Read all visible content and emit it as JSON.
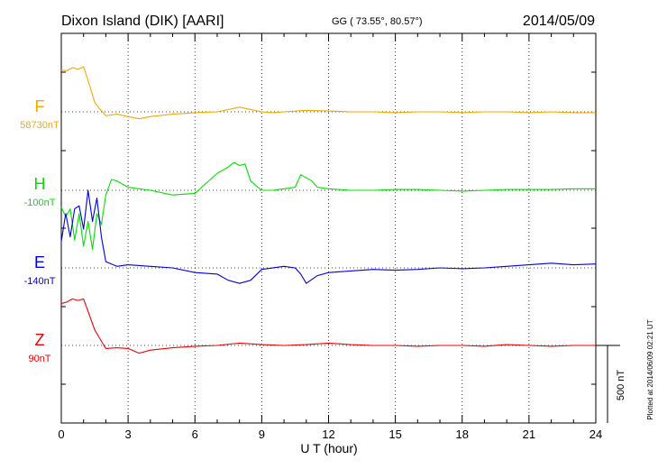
{
  "header": {
    "station": "Dixon Island (DIK)  [AARI]",
    "coords": "GG ( 73.55°,  80.57°)",
    "date": "2014/05/09"
  },
  "footnote": "Plotted at 2014/06/09 02:21  UT",
  "chart_data": {
    "type": "line",
    "title": "Dixon Island (DIK)  [AARI]",
    "xlabel": "U T (hour)",
    "ylabel": "",
    "xlim": [
      0,
      24
    ],
    "xticks": [
      0,
      3,
      6,
      9,
      12,
      15,
      18,
      21,
      24
    ],
    "tick_labels": [
      "0",
      "3",
      "6",
      "9",
      "12",
      "15",
      "18",
      "21",
      "24"
    ],
    "scale_bar": {
      "label": "500 nT",
      "value_nT": 500
    },
    "grid": "dotted vertical lines every 3 h; dotted baseline per component",
    "series": [
      {
        "name": "F",
        "baseline": "58730nT",
        "color": "#f5a800",
        "x": [
          0,
          0.25,
          0.5,
          0.75,
          1.0,
          1.25,
          1.5,
          1.75,
          2.0,
          2.5,
          3.0,
          3.5,
          4.0,
          5.0,
          6.0,
          7.0,
          7.5,
          8.0,
          8.5,
          9.0,
          9.5,
          10.0,
          11.0,
          12.0,
          13.0,
          14.0,
          15.0,
          16.0,
          17.0,
          18.0,
          19.0,
          20.0,
          21.0,
          22.0,
          23.0,
          24.0
        ],
        "y": [
          270,
          265,
          285,
          275,
          290,
          180,
          60,
          15,
          -25,
          -15,
          -30,
          -45,
          -30,
          -15,
          -5,
          0,
          15,
          30,
          15,
          0,
          -5,
          0,
          10,
          5,
          0,
          0,
          -5,
          0,
          0,
          -5,
          0,
          0,
          -5,
          0,
          -5,
          -5
        ]
      },
      {
        "name": "H",
        "baseline": "-100nT",
        "color": "#00e000",
        "x": [
          0,
          0.2,
          0.4,
          0.6,
          0.8,
          1.0,
          1.2,
          1.4,
          1.6,
          1.8,
          2.0,
          2.25,
          2.5,
          3.0,
          4.0,
          5.0,
          6.0,
          6.3,
          7.0,
          7.5,
          7.75,
          8.0,
          8.25,
          8.5,
          9.0,
          9.5,
          10.0,
          10.5,
          10.75,
          11.0,
          11.25,
          11.5,
          12.0,
          13.0,
          14.0,
          15.0,
          16.0,
          17.0,
          18.0,
          19.0,
          20.0,
          21.0,
          22.0,
          23.0,
          24.0
        ],
        "y": [
          -110,
          -170,
          -120,
          -320,
          -150,
          -360,
          -200,
          -380,
          -150,
          -220,
          -30,
          70,
          60,
          20,
          0,
          -30,
          -20,
          20,
          110,
          150,
          180,
          160,
          170,
          60,
          0,
          0,
          10,
          20,
          100,
          80,
          60,
          20,
          10,
          0,
          0,
          5,
          5,
          0,
          -5,
          0,
          5,
          5,
          5,
          10,
          10
        ]
      },
      {
        "name": "E",
        "baseline": "-140nT",
        "color": "#0000dd",
        "x": [
          0,
          0.2,
          0.4,
          0.6,
          0.8,
          1.0,
          1.2,
          1.4,
          1.6,
          1.8,
          2.0,
          2.5,
          3.0,
          4.0,
          5.0,
          6.0,
          7.0,
          7.5,
          8.0,
          8.5,
          9.0,
          10.0,
          10.5,
          10.75,
          11.0,
          11.5,
          12.0,
          13.0,
          14.0,
          15.0,
          16.0,
          17.0,
          18.0,
          19.0,
          20.0,
          21.0,
          22.0,
          23.0,
          24.0
        ],
        "y": [
          170,
          350,
          200,
          380,
          400,
          250,
          500,
          300,
          450,
          200,
          40,
          10,
          20,
          10,
          0,
          -30,
          -40,
          -80,
          -100,
          -80,
          -10,
          10,
          0,
          -40,
          -100,
          -50,
          -30,
          -20,
          -10,
          -15,
          -10,
          0,
          -5,
          0,
          10,
          20,
          30,
          20,
          25
        ]
      },
      {
        "name": "Z",
        "baseline": "90nT",
        "color": "#ee0000",
        "x": [
          0,
          0.25,
          0.5,
          0.75,
          1.0,
          1.25,
          1.5,
          1.75,
          2.0,
          2.5,
          3.0,
          3.5,
          4.0,
          5.0,
          6.0,
          7.0,
          8.0,
          9.0,
          10.0,
          11.0,
          12.0,
          13.0,
          14.0,
          15.0,
          16.0,
          17.0,
          18.0,
          19.0,
          20.0,
          21.0,
          22.0,
          23.0,
          24.0
        ],
        "y": [
          270,
          280,
          300,
          290,
          300,
          200,
          100,
          40,
          -20,
          -15,
          -20,
          -50,
          -30,
          -15,
          -5,
          0,
          15,
          5,
          0,
          5,
          15,
          5,
          0,
          0,
          -5,
          0,
          0,
          -5,
          5,
          0,
          -5,
          0,
          0
        ]
      }
    ]
  }
}
